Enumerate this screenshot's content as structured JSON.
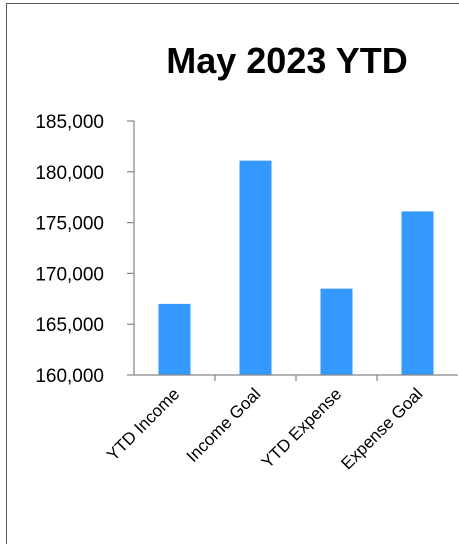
{
  "chart_data": {
    "type": "bar",
    "title": "May 2023 YTD",
    "xlabel": "",
    "ylabel": "",
    "categories": [
      "YTD Income",
      "Income Goal",
      "YTD Expense",
      "Expense Goal"
    ],
    "values": [
      167000,
      181100,
      168500,
      176100
    ],
    "ylim": [
      160000,
      185000
    ],
    "yticks": [
      160000,
      165000,
      170000,
      175000,
      180000,
      185000
    ],
    "ytick_labels": [
      "160,000",
      "165,000",
      "170,000",
      "175,000",
      "180,000",
      "185,000"
    ],
    "grid": false,
    "legend": "none",
    "bar_color": "#3399ff",
    "axis_color": "#868686"
  }
}
